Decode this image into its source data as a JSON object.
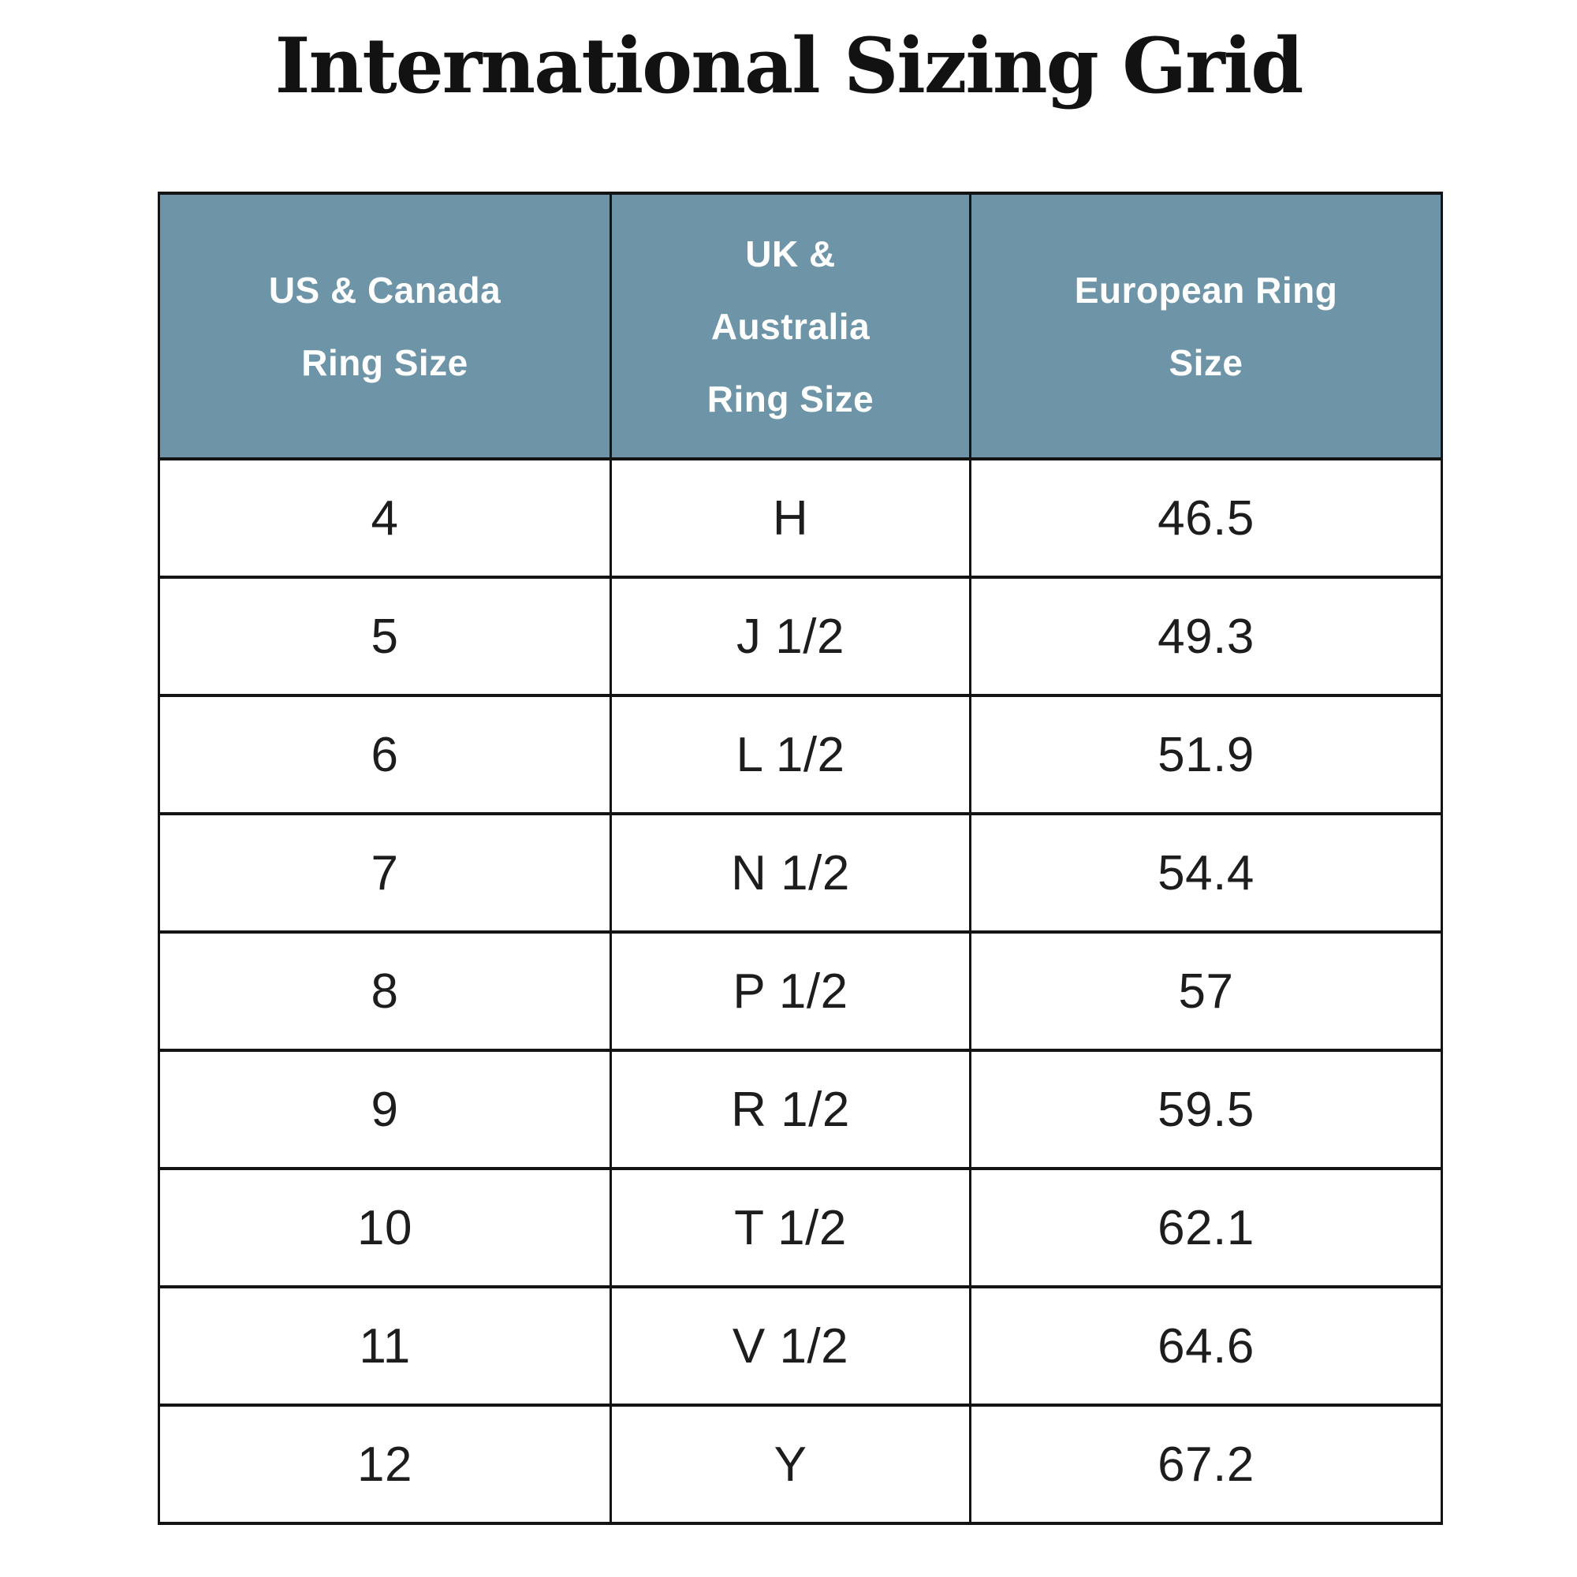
{
  "page": {
    "title": "International Sizing Grid"
  },
  "colors": {
    "header_bg": "#6d95a7",
    "header_text": "#ffffff",
    "border": "#141414",
    "body_text": "#1d1d1d",
    "title_text": "#121212",
    "background": "#ffffff"
  },
  "table": {
    "headers": [
      {
        "label": "US & Canada\nRing Size"
      },
      {
        "label": "UK &\nAustralia\nRing Size"
      },
      {
        "label": "European Ring\nSize"
      }
    ],
    "rows": [
      {
        "us": "4",
        "uk": "H",
        "eu": "46.5"
      },
      {
        "us": "5",
        "uk": "J 1/2",
        "eu": "49.3"
      },
      {
        "us": "6",
        "uk": "L 1/2",
        "eu": "51.9"
      },
      {
        "us": "7",
        "uk": "N 1/2",
        "eu": "54.4"
      },
      {
        "us": "8",
        "uk": "P 1/2",
        "eu": "57"
      },
      {
        "us": "9",
        "uk": "R 1/2",
        "eu": "59.5"
      },
      {
        "us": "10",
        "uk": "T 1/2",
        "eu": "62.1"
      },
      {
        "us": "11",
        "uk": "V 1/2",
        "eu": "64.6"
      },
      {
        "us": "12",
        "uk": "Y",
        "eu": "67.2"
      }
    ]
  },
  "chart_data": {
    "type": "table",
    "title": "International Sizing Grid",
    "columns": [
      "US & Canada Ring Size",
      "UK & Australia Ring Size",
      "European Ring Size"
    ],
    "rows": [
      [
        "4",
        "H",
        "46.5"
      ],
      [
        "5",
        "J 1/2",
        "49.3"
      ],
      [
        "6",
        "L 1/2",
        "51.9"
      ],
      [
        "7",
        "N 1/2",
        "54.4"
      ],
      [
        "8",
        "P 1/2",
        "57"
      ],
      [
        "9",
        "R 1/2",
        "59.5"
      ],
      [
        "10",
        "T 1/2",
        "62.1"
      ],
      [
        "11",
        "V 1/2",
        "64.6"
      ],
      [
        "12",
        "Y",
        "67.2"
      ]
    ]
  }
}
